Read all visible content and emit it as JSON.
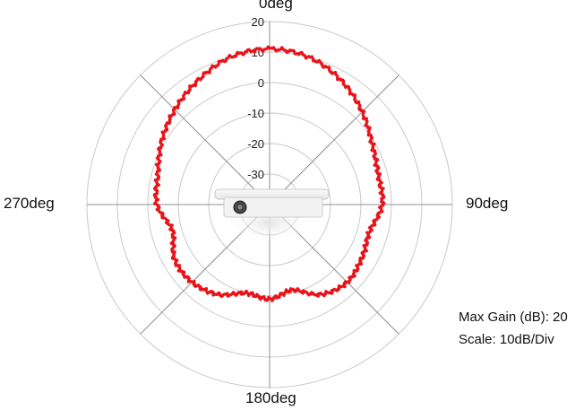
{
  "chart_data": {
    "type": "polar-line",
    "angle_labels": {
      "top": "0deg",
      "right": "90deg",
      "bottom": "180deg",
      "left": "270deg"
    },
    "radial_ticks": [
      "20",
      "10",
      "0",
      "-10",
      "-20",
      "-30"
    ],
    "radial_tick_values": [
      20,
      10,
      0,
      -10,
      -20,
      -30
    ],
    "rlim": [
      -40,
      20
    ],
    "grid": true,
    "line_color": "#e8141a",
    "series": [
      {
        "angles_deg": [
          0,
          15,
          30,
          45,
          60,
          75,
          90,
          105,
          120,
          135,
          150,
          165,
          180,
          195,
          210,
          225,
          240,
          255,
          270,
          285,
          300,
          315,
          330,
          345
        ],
        "values_db": [
          11,
          10,
          7,
          3,
          -1,
          -3,
          -3,
          -6,
          -5,
          -4,
          -6,
          -11,
          -9,
          -10,
          -6,
          -4,
          -4,
          -7,
          -3,
          -2,
          1,
          4,
          7,
          10
        ]
      }
    ]
  },
  "legend_text": {
    "max_gain": "Max Gain (dB): 20",
    "scale": "Scale: 10dB/Div"
  }
}
